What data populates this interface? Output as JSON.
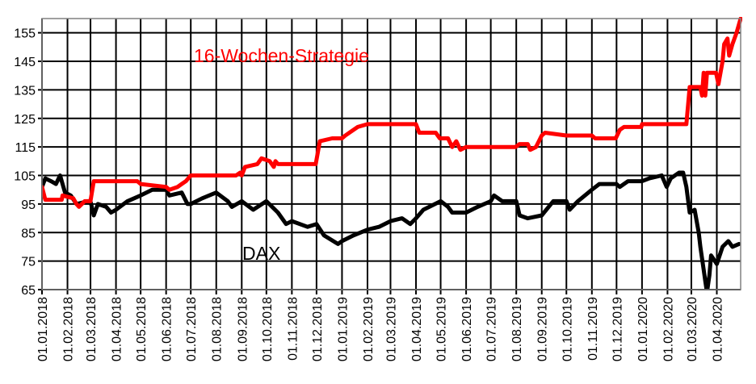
{
  "chart_data": {
    "type": "line",
    "title": "",
    "xlabel": "",
    "ylabel": "",
    "ylim": [
      65,
      160
    ],
    "xlim": [
      "2018-01-01",
      "2020-04-30"
    ],
    "grid": true,
    "yticks": [
      65,
      75,
      85,
      95,
      105,
      115,
      125,
      135,
      145,
      155
    ],
    "xticks": [
      "01.01.2018",
      "01.02.2018",
      "01.03.2018",
      "01.04.2018",
      "01.05.2018",
      "01.06.2018",
      "01.07.2018",
      "01.08.2018",
      "01.09.2018",
      "01.10.2018",
      "01.11.2018",
      "01.12.2018",
      "01.01.2019",
      "01.02.2019",
      "01.03.2019",
      "01.04.2019",
      "01.05.2019",
      "01.06.2019",
      "01.07.2019",
      "01.08.2019",
      "01.09.2019",
      "01.10.2019",
      "01.11.2019",
      "01.12.2019",
      "01.01.2020",
      "01.02.2020",
      "01.03.2020",
      "01.04.2020"
    ],
    "annotations": [
      {
        "text": "16-Wochen-Strategie",
        "color": "#ff0000"
      },
      {
        "text": "DAX",
        "color": "#000000"
      }
    ],
    "series": [
      {
        "name": "16-Wochen-Strategie",
        "color": "#ff0000",
        "points": [
          [
            "2018-01-01",
            101
          ],
          [
            "2018-01-05",
            96.5
          ],
          [
            "2018-01-25",
            96.5
          ],
          [
            "2018-01-26",
            98
          ],
          [
            "2018-02-08",
            97
          ],
          [
            "2018-02-12",
            95
          ],
          [
            "2018-02-15",
            94
          ],
          [
            "2018-02-22",
            96
          ],
          [
            "2018-03-01",
            96
          ],
          [
            "2018-03-05",
            103
          ],
          [
            "2018-04-27",
            103
          ],
          [
            "2018-05-01",
            102
          ],
          [
            "2018-06-01",
            101
          ],
          [
            "2018-06-05",
            100
          ],
          [
            "2018-06-15",
            101
          ],
          [
            "2018-06-20",
            102
          ],
          [
            "2018-06-25",
            103
          ],
          [
            "2018-07-01",
            105
          ],
          [
            "2018-08-25",
            105
          ],
          [
            "2018-08-30",
            106
          ],
          [
            "2018-09-01",
            105
          ],
          [
            "2018-09-05",
            108
          ],
          [
            "2018-09-20",
            109
          ],
          [
            "2018-09-25",
            111
          ],
          [
            "2018-10-05",
            110
          ],
          [
            "2018-10-10",
            108
          ],
          [
            "2018-10-12",
            110
          ],
          [
            "2018-10-15",
            109
          ],
          [
            "2018-11-30",
            109
          ],
          [
            "2018-12-05",
            117
          ],
          [
            "2018-12-20",
            118
          ],
          [
            "2019-01-01",
            118
          ],
          [
            "2019-01-05",
            119
          ],
          [
            "2019-01-15",
            121
          ],
          [
            "2019-01-20",
            122
          ],
          [
            "2019-02-01",
            123
          ],
          [
            "2019-04-01",
            123
          ],
          [
            "2019-04-05",
            120
          ],
          [
            "2019-04-25",
            120
          ],
          [
            "2019-04-30",
            118
          ],
          [
            "2019-05-10",
            118
          ],
          [
            "2019-05-15",
            115
          ],
          [
            "2019-05-20",
            117
          ],
          [
            "2019-05-25",
            114
          ],
          [
            "2019-06-01",
            115
          ],
          [
            "2019-07-31",
            115
          ],
          [
            "2019-08-05",
            116
          ],
          [
            "2019-08-15",
            116
          ],
          [
            "2019-08-18",
            114
          ],
          [
            "2019-08-25",
            115
          ],
          [
            "2019-09-01",
            119
          ],
          [
            "2019-09-05",
            120
          ],
          [
            "2019-10-01",
            119
          ],
          [
            "2019-11-01",
            119
          ],
          [
            "2019-11-05",
            118
          ],
          [
            "2019-11-30",
            118
          ],
          [
            "2019-12-05",
            121
          ],
          [
            "2019-12-10",
            122
          ],
          [
            "2019-12-31",
            122
          ],
          [
            "2020-01-01",
            123
          ],
          [
            "2020-02-24",
            123
          ],
          [
            "2020-02-28",
            136
          ],
          [
            "2020-03-12",
            136
          ],
          [
            "2020-03-14",
            133
          ],
          [
            "2020-03-16",
            141
          ],
          [
            "2020-03-18",
            133
          ],
          [
            "2020-03-20",
            141
          ],
          [
            "2020-03-31",
            141
          ],
          [
            "2020-04-03",
            137
          ],
          [
            "2020-04-08",
            145
          ],
          [
            "2020-04-10",
            151
          ],
          [
            "2020-04-14",
            153
          ],
          [
            "2020-04-16",
            147
          ],
          [
            "2020-04-20",
            151
          ],
          [
            "2020-04-25",
            155
          ],
          [
            "2020-04-30",
            160
          ]
        ]
      },
      {
        "name": "DAX",
        "color": "#000000",
        "points": [
          [
            "2018-01-01",
            101
          ],
          [
            "2018-01-05",
            104
          ],
          [
            "2018-01-12",
            103
          ],
          [
            "2018-01-18",
            102
          ],
          [
            "2018-01-23",
            105
          ],
          [
            "2018-01-29",
            99
          ],
          [
            "2018-02-05",
            98
          ],
          [
            "2018-02-12",
            95
          ],
          [
            "2018-02-26",
            96
          ],
          [
            "2018-03-01",
            96
          ],
          [
            "2018-03-05",
            91
          ],
          [
            "2018-03-10",
            95
          ],
          [
            "2018-03-20",
            94
          ],
          [
            "2018-03-26",
            92
          ],
          [
            "2018-04-01",
            93
          ],
          [
            "2018-04-15",
            96
          ],
          [
            "2018-05-01",
            98
          ],
          [
            "2018-05-15",
            100
          ],
          [
            "2018-06-01",
            100
          ],
          [
            "2018-06-05",
            98
          ],
          [
            "2018-06-20",
            99
          ],
          [
            "2018-06-27",
            95
          ],
          [
            "2018-07-01",
            95
          ],
          [
            "2018-07-15",
            97
          ],
          [
            "2018-08-01",
            99
          ],
          [
            "2018-08-15",
            96
          ],
          [
            "2018-08-20",
            94
          ],
          [
            "2018-09-01",
            96
          ],
          [
            "2018-09-15",
            93
          ],
          [
            "2018-10-01",
            96
          ],
          [
            "2018-10-15",
            92
          ],
          [
            "2018-10-25",
            88
          ],
          [
            "2018-11-01",
            89
          ],
          [
            "2018-11-20",
            87
          ],
          [
            "2018-12-01",
            88
          ],
          [
            "2018-12-10",
            84
          ],
          [
            "2018-12-27",
            81
          ],
          [
            "2019-01-01",
            82
          ],
          [
            "2019-01-15",
            84
          ],
          [
            "2019-02-01",
            86
          ],
          [
            "2019-02-15",
            87
          ],
          [
            "2019-03-01",
            89
          ],
          [
            "2019-03-15",
            90
          ],
          [
            "2019-03-25",
            88
          ],
          [
            "2019-04-01",
            90
          ],
          [
            "2019-04-10",
            93
          ],
          [
            "2019-05-01",
            96
          ],
          [
            "2019-05-10",
            94
          ],
          [
            "2019-05-15",
            92
          ],
          [
            "2019-06-01",
            92
          ],
          [
            "2019-06-15",
            94
          ],
          [
            "2019-07-01",
            96
          ],
          [
            "2019-07-05",
            98
          ],
          [
            "2019-07-15",
            96
          ],
          [
            "2019-08-01",
            96
          ],
          [
            "2019-08-05",
            91
          ],
          [
            "2019-08-15",
            90
          ],
          [
            "2019-09-01",
            91
          ],
          [
            "2019-09-15",
            96
          ],
          [
            "2019-10-01",
            96
          ],
          [
            "2019-10-05",
            93
          ],
          [
            "2019-10-15",
            96
          ],
          [
            "2019-11-01",
            100
          ],
          [
            "2019-11-10",
            102
          ],
          [
            "2019-12-01",
            102
          ],
          [
            "2019-12-05",
            101
          ],
          [
            "2019-12-15",
            103
          ],
          [
            "2020-01-01",
            103
          ],
          [
            "2020-01-10",
            104
          ],
          [
            "2020-01-25",
            105
          ],
          [
            "2020-01-31",
            101
          ],
          [
            "2020-02-05",
            104
          ],
          [
            "2020-02-15",
            106
          ],
          [
            "2020-02-20",
            106
          ],
          [
            "2020-02-24",
            101
          ],
          [
            "2020-02-28",
            92
          ],
          [
            "2020-03-05",
            93
          ],
          [
            "2020-03-10",
            85
          ],
          [
            "2020-03-12",
            80
          ],
          [
            "2020-03-16",
            72
          ],
          [
            "2020-03-18",
            68
          ],
          [
            "2020-03-20",
            64
          ],
          [
            "2020-03-23",
            70
          ],
          [
            "2020-03-25",
            77
          ],
          [
            "2020-04-01",
            74
          ],
          [
            "2020-04-08",
            80
          ],
          [
            "2020-04-15",
            82
          ],
          [
            "2020-04-20",
            80
          ],
          [
            "2020-04-28",
            81
          ]
        ]
      }
    ]
  }
}
